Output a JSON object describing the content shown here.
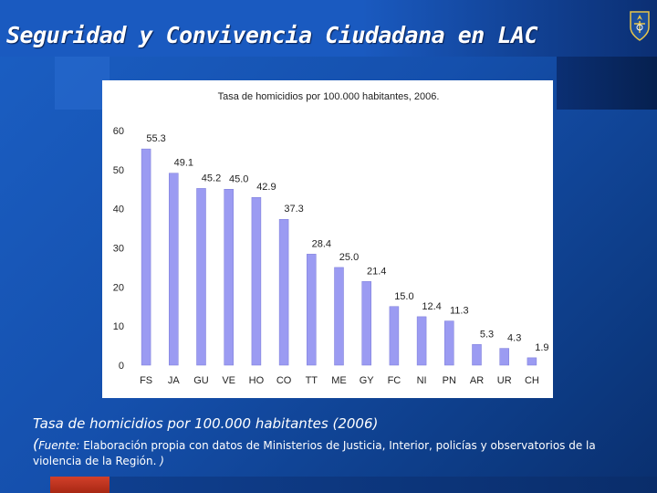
{
  "slide": {
    "title": "Seguridad y Convivencia Ciudadana en LAC",
    "caption": "Tasa de homicidios por 100.000 habitantes (2006)",
    "source_open": "(",
    "source_label": "Fuente:",
    "source_text": "Elaboración propia con datos de Ministerios de Justicia, Interior, policías y observatorios de la violencia de la Región.",
    "source_close": ")"
  },
  "colors": {
    "bar_fill": "#9b9bf2",
    "bar_edge": "#7a7ad8",
    "text": "#222222"
  },
  "chart_data": {
    "type": "bar",
    "title": "Tasa de homicidios por 100.000 habitantes, 2006.",
    "xlabel": "",
    "ylabel": "",
    "categories": [
      "FS",
      "JA",
      "GU",
      "VE",
      "HO",
      "CO",
      "TT",
      "ME",
      "GY",
      "FC",
      "NI",
      "PN",
      "AR",
      "UR",
      "CH"
    ],
    "values": [
      55.3,
      49.1,
      45.2,
      45.0,
      42.9,
      37.3,
      28.4,
      25.0,
      21.4,
      15.0,
      12.4,
      11.3,
      5.3,
      4.3,
      1.9
    ],
    "value_labels": [
      "55.3",
      "49.1",
      "45.2",
      "45.0",
      "42.9",
      "37.3",
      "28.4",
      "25.0",
      "21.4",
      "15.0",
      "12.4",
      "11.3",
      "5.3",
      "4.3",
      "1.9"
    ],
    "ylim": [
      0,
      60
    ],
    "yticks": [
      0,
      10,
      20,
      30,
      40,
      50,
      60
    ],
    "grid": false,
    "legend": "none"
  }
}
